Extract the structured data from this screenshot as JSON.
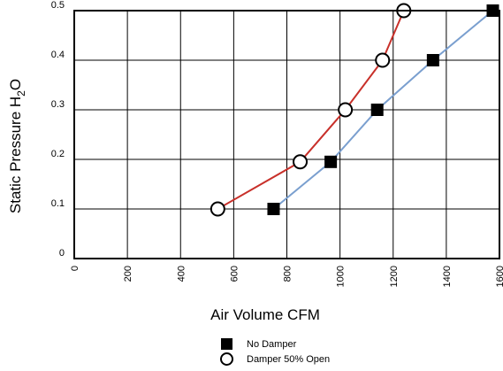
{
  "chart_data": {
    "type": "line",
    "title": "",
    "xlabel": "Air Volume CFM",
    "ylabel": {
      "main": "Static Pressure H",
      "sub": "2",
      "tail": "O"
    },
    "xlim": [
      0,
      1600
    ],
    "ylim": [
      0,
      0.5
    ],
    "x_ticks": [
      "0",
      "200",
      "400",
      "600",
      "800",
      "1000",
      "1200",
      "1400",
      "1600"
    ],
    "y_ticks": [
      "0",
      "0.1",
      "0.2",
      "0.3",
      "0.4",
      "0.5"
    ],
    "grid": true,
    "legend_position": "bottom-center",
    "series": [
      {
        "name": "No Damper",
        "color": "#7a9fcf",
        "marker": "filled-square",
        "points": [
          [
            750,
            0.1
          ],
          [
            965,
            0.195
          ],
          [
            1140,
            0.3
          ],
          [
            1350,
            0.4
          ],
          [
            1575,
            0.5
          ]
        ]
      },
      {
        "name": "Damper 50% Open",
        "color": "#c8302a",
        "marker": "open-circle",
        "points": [
          [
            540,
            0.1
          ],
          [
            850,
            0.195
          ],
          [
            1020,
            0.3
          ],
          [
            1160,
            0.4
          ],
          [
            1240,
            0.5
          ]
        ]
      }
    ]
  }
}
